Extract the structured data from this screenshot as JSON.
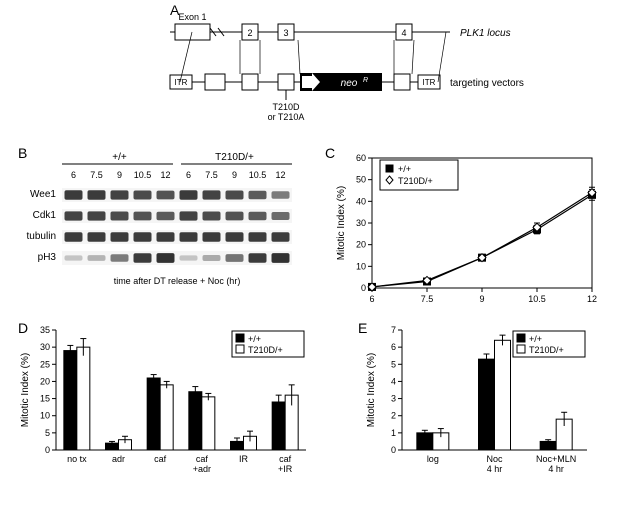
{
  "panelA": {
    "label": "A",
    "locus_text": "PLK1 locus",
    "target_text": "targeting vectors",
    "itr": "ITR",
    "neo": "neoR",
    "exon1": "Exon 1",
    "ex2": "2",
    "ex3": "3",
    "ex4": "4",
    "mutation": "T210D\nor T210A",
    "colors": {
      "bg": "#ffffff",
      "line": "#000000",
      "neo": "#000000",
      "box": "#ffffff"
    },
    "font_italic": true
  },
  "panelB": {
    "label": "B",
    "groups": [
      "+/+",
      "T210D/+"
    ],
    "times": [
      "6",
      "7.5",
      "9",
      "10.5",
      "12",
      "6",
      "7.5",
      "9",
      "10.5",
      "12"
    ],
    "rows": [
      "Wee1",
      "Cdk1",
      "tubulin",
      "pH3"
    ],
    "xlabel": "time after DT release + Noc (hr)",
    "band_heights": {
      "Wee1": [
        0.9,
        0.9,
        0.85,
        0.8,
        0.75,
        0.9,
        0.85,
        0.8,
        0.7,
        0.5
      ],
      "Cdk1": [
        0.85,
        0.85,
        0.8,
        0.75,
        0.7,
        0.85,
        0.8,
        0.75,
        0.7,
        0.6
      ],
      "tubulin": [
        0.9,
        0.9,
        0.9,
        0.9,
        0.9,
        0.9,
        0.9,
        0.9,
        0.9,
        0.9
      ],
      "pH3": [
        0.05,
        0.15,
        0.5,
        0.9,
        0.95,
        0.05,
        0.2,
        0.55,
        0.9,
        0.95
      ]
    },
    "band_color": "#2a2a2a",
    "bg": "#f5f5f5"
  },
  "panelC": {
    "label": "C",
    "ylabel": "Mitotic Index (%)",
    "legend": [
      {
        "label": "+/+",
        "marker": "filled-square",
        "color": "#000000"
      },
      {
        "label": "T210D/+",
        "marker": "open-diamond",
        "color": "#000000"
      }
    ],
    "x": [
      6,
      7.5,
      9,
      10.5,
      12
    ],
    "series1": {
      "y": [
        0.5,
        3,
        14,
        27,
        43
      ],
      "err": [
        0.5,
        0.8,
        1.5,
        2,
        2.5
      ]
    },
    "series2": {
      "y": [
        0.5,
        3.5,
        14,
        28,
        44
      ],
      "err": [
        0.5,
        0.8,
        1.5,
        2,
        2.5
      ]
    },
    "xlim": [
      6,
      12
    ],
    "ylim": [
      0,
      60
    ],
    "yticks": [
      0,
      10,
      20,
      30,
      40,
      50,
      60
    ],
    "xticks": [
      6,
      7.5,
      9,
      10.5,
      12
    ],
    "grid_color": "#ffffff",
    "axis_color": "#000000"
  },
  "panelD": {
    "label": "D",
    "ylabel": "Mitotic Index (%)",
    "legend": [
      {
        "label": "+/+",
        "fill": "#000000"
      },
      {
        "label": "T210D/+",
        "fill": "#ffffff"
      }
    ],
    "categories": [
      "no tx",
      "adr",
      "caf",
      "caf\n+adr",
      "IR",
      "caf\n+IR"
    ],
    "series1": {
      "y": [
        29,
        2,
        21,
        17,
        2.5,
        14
      ],
      "err": [
        1.5,
        0.5,
        1,
        1.5,
        1,
        2
      ]
    },
    "series2": {
      "y": [
        30,
        3,
        19,
        15.5,
        4,
        16
      ],
      "err": [
        2.5,
        1,
        1,
        1,
        1.5,
        3
      ]
    },
    "ylim": [
      0,
      35
    ],
    "yticks": [
      0,
      5,
      10,
      15,
      20,
      25,
      30,
      35
    ],
    "axis_color": "#000000",
    "bar_border": "#000000"
  },
  "panelE": {
    "label": "E",
    "ylabel": "Mitotic Index (%)",
    "legend": [
      {
        "label": "+/+",
        "fill": "#000000"
      },
      {
        "label": "T210D/+",
        "fill": "#ffffff"
      }
    ],
    "categories": [
      "log",
      "Noc\n4 hr",
      "Noc+MLN\n4 hr"
    ],
    "series1": {
      "y": [
        1,
        5.3,
        0.5
      ],
      "err": [
        0.15,
        0.3,
        0.1
      ]
    },
    "series2": {
      "y": [
        1,
        6.4,
        1.8
      ],
      "err": [
        0.25,
        0.3,
        0.4
      ]
    },
    "ylim": [
      0,
      7
    ],
    "yticks": [
      0,
      1,
      2,
      3,
      4,
      5,
      6,
      7
    ],
    "axis_color": "#000000",
    "bar_border": "#000000"
  }
}
